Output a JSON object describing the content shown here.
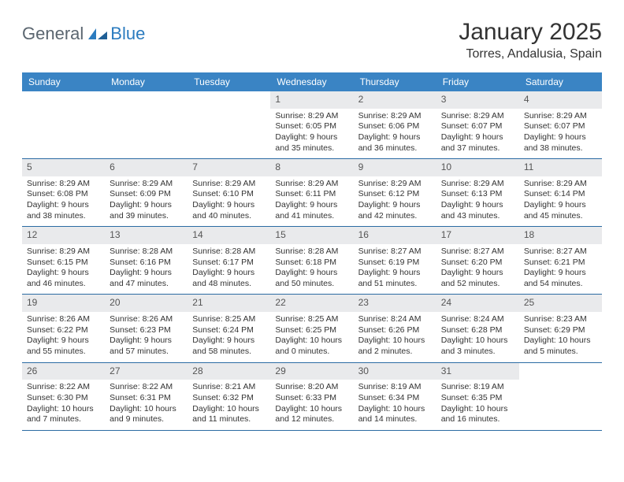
{
  "brand": {
    "general": "General",
    "blue": "Blue"
  },
  "title": "January 2025",
  "location": "Torres, Andalusia, Spain",
  "colors": {
    "header_bg": "#3a84c4",
    "header_text": "#ffffff",
    "daynum_bg": "#e9eaec",
    "week_border": "#2b6ba3",
    "text": "#333333",
    "logo_gray": "#5b6670",
    "logo_blue": "#2b7bbf"
  },
  "day_labels": [
    "Sunday",
    "Monday",
    "Tuesday",
    "Wednesday",
    "Thursday",
    "Friday",
    "Saturday"
  ],
  "weeks": [
    [
      null,
      null,
      null,
      {
        "n": "1",
        "sunrise": "8:29 AM",
        "sunset": "6:05 PM",
        "daylight": "9 hours and 35 minutes."
      },
      {
        "n": "2",
        "sunrise": "8:29 AM",
        "sunset": "6:06 PM",
        "daylight": "9 hours and 36 minutes."
      },
      {
        "n": "3",
        "sunrise": "8:29 AM",
        "sunset": "6:07 PM",
        "daylight": "9 hours and 37 minutes."
      },
      {
        "n": "4",
        "sunrise": "8:29 AM",
        "sunset": "6:07 PM",
        "daylight": "9 hours and 38 minutes."
      }
    ],
    [
      {
        "n": "5",
        "sunrise": "8:29 AM",
        "sunset": "6:08 PM",
        "daylight": "9 hours and 38 minutes."
      },
      {
        "n": "6",
        "sunrise": "8:29 AM",
        "sunset": "6:09 PM",
        "daylight": "9 hours and 39 minutes."
      },
      {
        "n": "7",
        "sunrise": "8:29 AM",
        "sunset": "6:10 PM",
        "daylight": "9 hours and 40 minutes."
      },
      {
        "n": "8",
        "sunrise": "8:29 AM",
        "sunset": "6:11 PM",
        "daylight": "9 hours and 41 minutes."
      },
      {
        "n": "9",
        "sunrise": "8:29 AM",
        "sunset": "6:12 PM",
        "daylight": "9 hours and 42 minutes."
      },
      {
        "n": "10",
        "sunrise": "8:29 AM",
        "sunset": "6:13 PM",
        "daylight": "9 hours and 43 minutes."
      },
      {
        "n": "11",
        "sunrise": "8:29 AM",
        "sunset": "6:14 PM",
        "daylight": "9 hours and 45 minutes."
      }
    ],
    [
      {
        "n": "12",
        "sunrise": "8:29 AM",
        "sunset": "6:15 PM",
        "daylight": "9 hours and 46 minutes."
      },
      {
        "n": "13",
        "sunrise": "8:28 AM",
        "sunset": "6:16 PM",
        "daylight": "9 hours and 47 minutes."
      },
      {
        "n": "14",
        "sunrise": "8:28 AM",
        "sunset": "6:17 PM",
        "daylight": "9 hours and 48 minutes."
      },
      {
        "n": "15",
        "sunrise": "8:28 AM",
        "sunset": "6:18 PM",
        "daylight": "9 hours and 50 minutes."
      },
      {
        "n": "16",
        "sunrise": "8:27 AM",
        "sunset": "6:19 PM",
        "daylight": "9 hours and 51 minutes."
      },
      {
        "n": "17",
        "sunrise": "8:27 AM",
        "sunset": "6:20 PM",
        "daylight": "9 hours and 52 minutes."
      },
      {
        "n": "18",
        "sunrise": "8:27 AM",
        "sunset": "6:21 PM",
        "daylight": "9 hours and 54 minutes."
      }
    ],
    [
      {
        "n": "19",
        "sunrise": "8:26 AM",
        "sunset": "6:22 PM",
        "daylight": "9 hours and 55 minutes."
      },
      {
        "n": "20",
        "sunrise": "8:26 AM",
        "sunset": "6:23 PM",
        "daylight": "9 hours and 57 minutes."
      },
      {
        "n": "21",
        "sunrise": "8:25 AM",
        "sunset": "6:24 PM",
        "daylight": "9 hours and 58 minutes."
      },
      {
        "n": "22",
        "sunrise": "8:25 AM",
        "sunset": "6:25 PM",
        "daylight": "10 hours and 0 minutes."
      },
      {
        "n": "23",
        "sunrise": "8:24 AM",
        "sunset": "6:26 PM",
        "daylight": "10 hours and 2 minutes."
      },
      {
        "n": "24",
        "sunrise": "8:24 AM",
        "sunset": "6:28 PM",
        "daylight": "10 hours and 3 minutes."
      },
      {
        "n": "25",
        "sunrise": "8:23 AM",
        "sunset": "6:29 PM",
        "daylight": "10 hours and 5 minutes."
      }
    ],
    [
      {
        "n": "26",
        "sunrise": "8:22 AM",
        "sunset": "6:30 PM",
        "daylight": "10 hours and 7 minutes."
      },
      {
        "n": "27",
        "sunrise": "8:22 AM",
        "sunset": "6:31 PM",
        "daylight": "10 hours and 9 minutes."
      },
      {
        "n": "28",
        "sunrise": "8:21 AM",
        "sunset": "6:32 PM",
        "daylight": "10 hours and 11 minutes."
      },
      {
        "n": "29",
        "sunrise": "8:20 AM",
        "sunset": "6:33 PM",
        "daylight": "10 hours and 12 minutes."
      },
      {
        "n": "30",
        "sunrise": "8:19 AM",
        "sunset": "6:34 PM",
        "daylight": "10 hours and 14 minutes."
      },
      {
        "n": "31",
        "sunrise": "8:19 AM",
        "sunset": "6:35 PM",
        "daylight": "10 hours and 16 minutes."
      },
      null
    ]
  ],
  "labels": {
    "sunrise": "Sunrise: ",
    "sunset": "Sunset: ",
    "daylight": "Daylight: "
  }
}
